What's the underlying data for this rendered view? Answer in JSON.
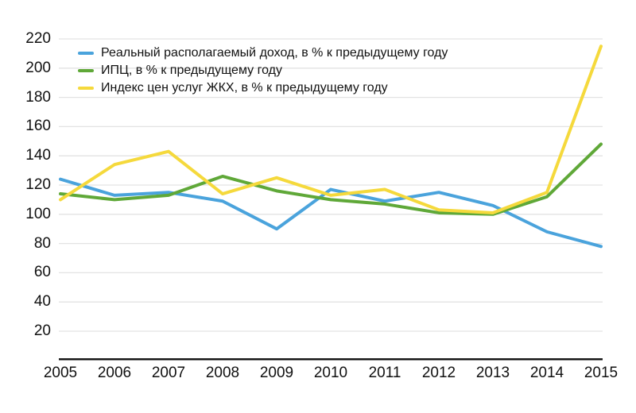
{
  "chart_data": {
    "type": "line",
    "title": "",
    "xlabel": "",
    "ylabel": "",
    "categories": [
      "2005",
      "2006",
      "2007",
      "2008",
      "2009",
      "2010",
      "2011",
      "2012",
      "2013",
      "2014",
      "2015"
    ],
    "series": [
      {
        "name": "Реальный располагаемый доход, в % к предыдущему году",
        "color": "#4aa3dc",
        "values": [
          124,
          113,
          115,
          109,
          90,
          117,
          109,
          115,
          106,
          88,
          78
        ]
      },
      {
        "name": "ИПЦ, в % к предыдущему году",
        "color": "#5fa838",
        "values": [
          114,
          110,
          113,
          126,
          116,
          110,
          107,
          101,
          100,
          112,
          148
        ]
      },
      {
        "name": "Индекс цен услуг ЖКХ, в % к предыдущему году",
        "color": "#f5d93c",
        "values": [
          110,
          134,
          143,
          114,
          125,
          113,
          117,
          103,
          101,
          115,
          215
        ]
      }
    ],
    "y_ticks": [
      220,
      200,
      180,
      160,
      140,
      120,
      100,
      80,
      60,
      40,
      20
    ],
    "ylim": [
      0,
      230
    ],
    "grid": true,
    "legend_position": "top-left"
  },
  "colors": {
    "background": "#ffffff",
    "gridline": "#e3e3e3",
    "axis_line": "#0d0d0d",
    "text": "#111111"
  }
}
